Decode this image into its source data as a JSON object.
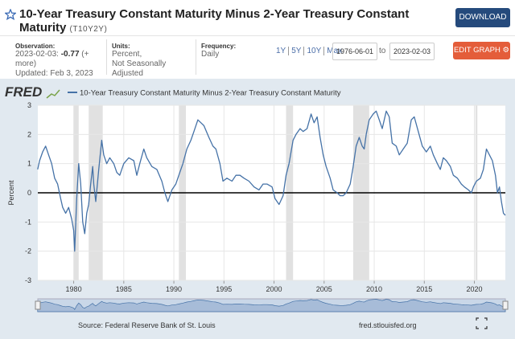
{
  "header": {
    "title": "10-Year Treasury Constant Maturity Minus 2-Year Treasury Constant Maturity",
    "series_id": "(T10Y2Y)",
    "download": "DOWNLOAD"
  },
  "info": {
    "observation_label": "Observation:",
    "observation_date": "2023-02-03:",
    "observation_value": -0.77,
    "more": "(+ more)",
    "updated": "Updated: Feb 3, 2023",
    "units_label": "Units:",
    "units_line1": "Percent,",
    "units_line2": "Not Seasonally Adjusted",
    "frequency_label": "Frequency:",
    "frequency": "Daily"
  },
  "range": {
    "links": [
      "1Y",
      "5Y",
      "10Y",
      "Max"
    ],
    "start": "1976-06-01",
    "to": "to",
    "end": "2023-02-03",
    "edit": "EDIT GRAPH"
  },
  "logo": "FRED",
  "footer": {
    "source": "Source: Federal Reserve Bank of St. Louis",
    "site": "fred.stlouisfed.org"
  },
  "chart_data": {
    "type": "line",
    "ylabel": "Percent",
    "xlim": [
      1976.42,
      2023.09
    ],
    "ylim": [
      -3,
      3
    ],
    "xticks": [
      1980,
      1985,
      1990,
      1995,
      2000,
      2005,
      2010,
      2015,
      2020
    ],
    "yticks": [
      -3,
      -2,
      -1,
      0,
      1,
      2,
      3
    ],
    "grid": true,
    "recessions": [
      [
        1980.0,
        1980.5
      ],
      [
        1981.5,
        1982.9
      ],
      [
        1990.5,
        1991.2
      ],
      [
        2001.2,
        2001.9
      ],
      [
        2007.9,
        2009.5
      ],
      [
        2020.1,
        2020.3
      ]
    ],
    "x": [
      1976.4,
      1976.6,
      1976.9,
      1977.2,
      1977.5,
      1977.8,
      1978.1,
      1978.4,
      1978.7,
      1978.9,
      1979.2,
      1979.5,
      1979.8,
      1980.0,
      1980.1,
      1980.3,
      1980.5,
      1980.7,
      1980.9,
      1981.1,
      1981.3,
      1981.5,
      1981.7,
      1981.9,
      1982.0,
      1982.2,
      1982.5,
      1982.8,
      1983.0,
      1983.3,
      1983.6,
      1984.0,
      1984.3,
      1984.6,
      1985.0,
      1985.5,
      1986.0,
      1986.3,
      1986.6,
      1987.0,
      1987.3,
      1987.8,
      1988.3,
      1988.8,
      1989.1,
      1989.4,
      1989.8,
      1990.2,
      1990.6,
      1990.9,
      1991.3,
      1991.7,
      1992.0,
      1992.4,
      1992.7,
      1993.0,
      1993.5,
      1993.9,
      1994.2,
      1994.6,
      1994.9,
      1995.3,
      1995.8,
      1996.2,
      1996.6,
      1997.0,
      1997.5,
      1998.0,
      1998.5,
      1998.9,
      1999.3,
      1999.8,
      2000.1,
      2000.5,
      2000.9,
      2001.2,
      2001.5,
      2001.9,
      2002.2,
      2002.6,
      2002.9,
      2003.3,
      2003.7,
      2004.0,
      2004.3,
      2004.6,
      2004.9,
      2005.2,
      2005.6,
      2005.9,
      2006.3,
      2006.6,
      2006.9,
      2007.2,
      2007.6,
      2007.9,
      2008.2,
      2008.5,
      2008.8,
      2009.0,
      2009.2,
      2009.5,
      2009.9,
      2010.2,
      2010.5,
      2010.8,
      2011.2,
      2011.5,
      2011.8,
      2012.2,
      2012.5,
      2012.9,
      2013.3,
      2013.7,
      2014.0,
      2014.4,
      2014.8,
      2015.2,
      2015.6,
      2015.9,
      2016.3,
      2016.6,
      2016.9,
      2017.2,
      2017.6,
      2017.9,
      2018.3,
      2018.7,
      2019.0,
      2019.4,
      2019.7,
      2019.9,
      2020.2,
      2020.6,
      2020.9,
      2021.2,
      2021.5,
      2021.8,
      2022.1,
      2022.3,
      2022.5,
      2022.7,
      2022.9,
      2023.09
    ],
    "series": [
      {
        "name": "10-Year Treasury Constant Maturity Minus 2-Year Treasury Constant Maturity",
        "color": "#4572a7",
        "values": [
          0.8,
          1.1,
          1.4,
          1.6,
          1.3,
          1.0,
          0.5,
          0.3,
          -0.2,
          -0.5,
          -0.7,
          -0.5,
          -0.9,
          -1.3,
          -2.0,
          -0.2,
          1.0,
          0.3,
          -1.0,
          -1.4,
          -0.7,
          -0.4,
          0.3,
          0.9,
          0.3,
          -0.3,
          0.8,
          1.8,
          1.3,
          1.0,
          1.2,
          1.0,
          0.7,
          0.6,
          1.0,
          1.2,
          1.1,
          0.6,
          1.0,
          1.5,
          1.2,
          0.9,
          0.8,
          0.4,
          0.0,
          -0.3,
          0.1,
          0.3,
          0.7,
          1.0,
          1.5,
          1.8,
          2.1,
          2.5,
          2.4,
          2.3,
          1.9,
          1.6,
          1.5,
          1.0,
          0.4,
          0.5,
          0.4,
          0.6,
          0.6,
          0.5,
          0.4,
          0.2,
          0.1,
          0.3,
          0.3,
          0.2,
          -0.2,
          -0.4,
          -0.1,
          0.6,
          1.0,
          1.8,
          2.0,
          2.2,
          2.1,
          2.2,
          2.7,
          2.4,
          2.6,
          1.9,
          1.3,
          0.9,
          0.5,
          0.1,
          0.0,
          -0.1,
          -0.1,
          0.0,
          0.3,
          0.9,
          1.6,
          1.9,
          1.6,
          1.5,
          2.0,
          2.5,
          2.7,
          2.8,
          2.5,
          2.2,
          2.8,
          2.6,
          1.7,
          1.6,
          1.3,
          1.5,
          1.7,
          2.5,
          2.6,
          2.1,
          1.6,
          1.4,
          1.6,
          1.3,
          1.0,
          0.8,
          1.2,
          1.1,
          0.9,
          0.6,
          0.5,
          0.3,
          0.2,
          0.1,
          0.0,
          0.2,
          0.4,
          0.5,
          0.8,
          1.5,
          1.3,
          1.1,
          0.6,
          0.0,
          0.2,
          -0.3,
          -0.7,
          -0.77
        ]
      }
    ]
  }
}
